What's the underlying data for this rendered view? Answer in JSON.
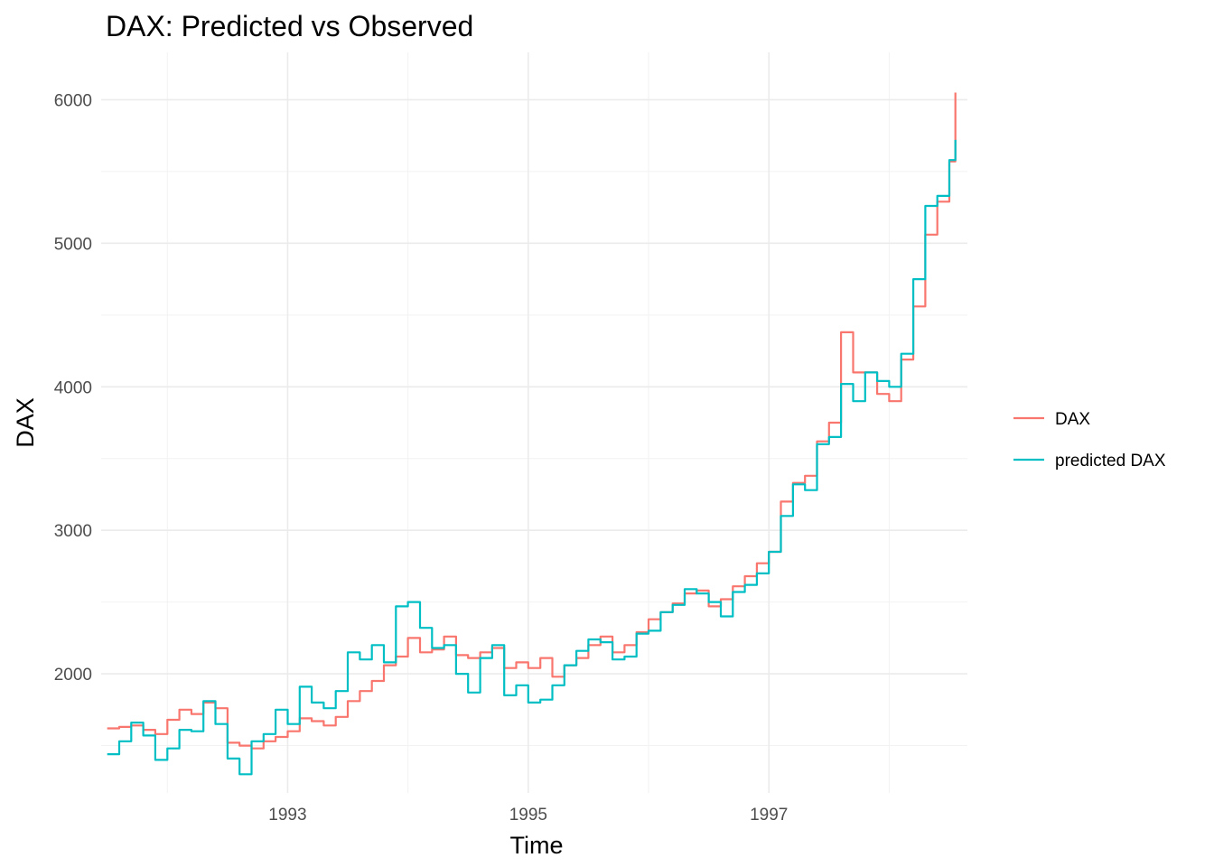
{
  "chart_data": {
    "type": "line",
    "title": "DAX: Predicted vs Observed",
    "xlabel": "Time",
    "ylabel": "DAX",
    "xlim": [
      1991.45,
      1998.65
    ],
    "ylim": [
      1170,
      6330
    ],
    "x_ticks": [
      1993,
      1995,
      1997
    ],
    "x_tick_labels": [
      "1993",
      "1995",
      "1997"
    ],
    "x_minor_ticks": [
      1992,
      1994,
      1996,
      1998
    ],
    "y_ticks": [
      2000,
      3000,
      4000,
      5000,
      6000
    ],
    "y_tick_labels": [
      "2000",
      "3000",
      "4000",
      "5000",
      "6000"
    ],
    "y_minor_ticks": [
      1500,
      2500,
      3500,
      4500,
      5500
    ],
    "grid": true,
    "legend_position": "right",
    "series": [
      {
        "name": "DAX",
        "color": "#F8766D",
        "x": [
          1991.5,
          1991.6,
          1991.7,
          1991.8,
          1991.9,
          1992.0,
          1992.1,
          1992.2,
          1992.3,
          1992.4,
          1992.5,
          1992.6,
          1992.7,
          1992.8,
          1992.9,
          1993.0,
          1993.1,
          1993.2,
          1993.3,
          1993.4,
          1993.5,
          1993.6,
          1993.7,
          1993.8,
          1993.9,
          1994.0,
          1994.1,
          1994.2,
          1994.3,
          1994.4,
          1994.5,
          1994.6,
          1994.7,
          1994.8,
          1994.9,
          1995.0,
          1995.1,
          1995.2,
          1995.3,
          1995.4,
          1995.5,
          1995.6,
          1995.7,
          1995.8,
          1995.9,
          1996.0,
          1996.1,
          1996.2,
          1996.3,
          1996.4,
          1996.5,
          1996.6,
          1996.7,
          1996.8,
          1996.9,
          1997.0,
          1997.1,
          1997.2,
          1997.3,
          1997.4,
          1997.5,
          1997.6,
          1997.7,
          1997.8,
          1997.9,
          1998.0,
          1998.1,
          1998.2,
          1998.3,
          1998.4,
          1998.5,
          1998.55
        ],
        "y": [
          1620,
          1630,
          1640,
          1610,
          1580,
          1680,
          1750,
          1720,
          1800,
          1760,
          1520,
          1500,
          1480,
          1530,
          1560,
          1600,
          1690,
          1670,
          1640,
          1700,
          1810,
          1880,
          1950,
          2060,
          2120,
          2250,
          2150,
          2170,
          2260,
          2130,
          2110,
          2150,
          2180,
          2040,
          2080,
          2040,
          2110,
          1980,
          2060,
          2110,
          2200,
          2260,
          2150,
          2200,
          2290,
          2380,
          2430,
          2490,
          2560,
          2580,
          2470,
          2520,
          2610,
          2680,
          2770,
          2850,
          3200,
          3330,
          3380,
          3620,
          3750,
          4380,
          4100,
          4100,
          3950,
          3900,
          4190,
          4560,
          5060,
          5290,
          5570,
          6050
        ]
      },
      {
        "name": "predicted DAX",
        "color": "#00BFC4",
        "x": [
          1991.5,
          1991.6,
          1991.7,
          1991.8,
          1991.9,
          1992.0,
          1992.1,
          1992.2,
          1992.3,
          1992.4,
          1992.5,
          1992.6,
          1992.7,
          1992.8,
          1992.9,
          1993.0,
          1993.1,
          1993.2,
          1993.3,
          1993.4,
          1993.5,
          1993.6,
          1993.7,
          1993.8,
          1993.9,
          1994.0,
          1994.1,
          1994.2,
          1994.3,
          1994.4,
          1994.5,
          1994.6,
          1994.7,
          1994.8,
          1994.9,
          1995.0,
          1995.1,
          1995.2,
          1995.3,
          1995.4,
          1995.5,
          1995.6,
          1995.7,
          1995.8,
          1995.9,
          1996.0,
          1996.1,
          1996.2,
          1996.3,
          1996.4,
          1996.5,
          1996.6,
          1996.7,
          1996.8,
          1996.9,
          1997.0,
          1997.1,
          1997.2,
          1997.3,
          1997.4,
          1997.5,
          1997.6,
          1997.7,
          1997.8,
          1997.9,
          1998.0,
          1998.1,
          1998.2,
          1998.3,
          1998.4,
          1998.5,
          1998.55
        ],
        "y": [
          1440,
          1530,
          1660,
          1570,
          1400,
          1480,
          1610,
          1600,
          1810,
          1650,
          1410,
          1300,
          1530,
          1580,
          1750,
          1650,
          1910,
          1800,
          1760,
          1880,
          2150,
          2100,
          2200,
          2080,
          2470,
          2500,
          2320,
          2180,
          2200,
          2000,
          1870,
          2110,
          2200,
          1850,
          1920,
          1800,
          1820,
          1920,
          2060,
          2160,
          2240,
          2220,
          2100,
          2120,
          2280,
          2300,
          2430,
          2480,
          2590,
          2560,
          2500,
          2400,
          2570,
          2620,
          2700,
          2850,
          3100,
          3320,
          3280,
          3600,
          3650,
          4020,
          3900,
          4100,
          4040,
          4000,
          4230,
          4750,
          5260,
          5330,
          5580,
          5720
        ]
      }
    ]
  }
}
